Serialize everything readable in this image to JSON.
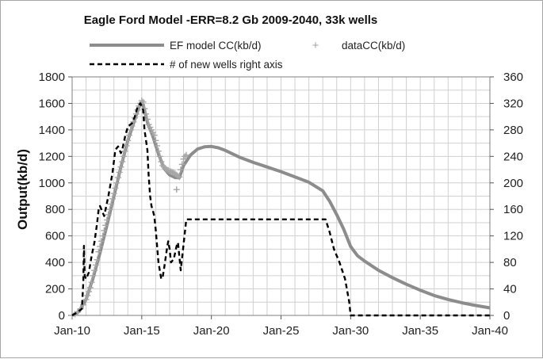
{
  "chart_data": {
    "type": "line",
    "title": "Eagle Ford Model -ERR=8.2 Gb  2009-2040, 33k wells",
    "ylabel": "Output(kb/d)",
    "xlabel": "",
    "xlim": [
      2010,
      2040
    ],
    "ylim": [
      0,
      1800
    ],
    "y2lim": [
      0,
      360
    ],
    "x_ticks": [
      2010,
      2015,
      2020,
      2025,
      2030,
      2035,
      2040
    ],
    "x_tick_labels": [
      "Jan-10",
      "Jan-15",
      "Jan-20",
      "Jan-25",
      "Jan-30",
      "Jan-35",
      "Jan-40"
    ],
    "y_ticks": [
      0,
      200,
      400,
      600,
      800,
      1000,
      1200,
      1400,
      1600,
      1800
    ],
    "y2_ticks": [
      0,
      40,
      80,
      120,
      160,
      200,
      240,
      280,
      320,
      360
    ],
    "grid": true,
    "legend_position": "top",
    "series": [
      {
        "name": "EF model CC(kb/d)",
        "axis": "left",
        "style": "line",
        "color": "#8c8c8c",
        "points": [
          [
            2010,
            0
          ],
          [
            2010.5,
            30
          ],
          [
            2011,
            120
          ],
          [
            2011.5,
            280
          ],
          [
            2012,
            470
          ],
          [
            2012.5,
            680
          ],
          [
            2013,
            900
          ],
          [
            2013.5,
            1120
          ],
          [
            2014,
            1320
          ],
          [
            2014.5,
            1480
          ],
          [
            2014.9,
            1600
          ],
          [
            2015.1,
            1590
          ],
          [
            2015.4,
            1460
          ],
          [
            2015.8,
            1350
          ],
          [
            2016.2,
            1220
          ],
          [
            2016.6,
            1110
          ],
          [
            2017,
            1060
          ],
          [
            2017.4,
            1040
          ],
          [
            2017.7,
            1040
          ],
          [
            2018,
            1130
          ],
          [
            2018.5,
            1210
          ],
          [
            2019,
            1255
          ],
          [
            2019.5,
            1272
          ],
          [
            2020,
            1275
          ],
          [
            2020.5,
            1265
          ],
          [
            2021,
            1245
          ],
          [
            2022,
            1195
          ],
          [
            2023,
            1155
          ],
          [
            2024,
            1120
          ],
          [
            2025,
            1085
          ],
          [
            2026,
            1045
          ],
          [
            2027,
            1005
          ],
          [
            2028,
            940
          ],
          [
            2028.5,
            860
          ],
          [
            2029,
            760
          ],
          [
            2029.5,
            650
          ],
          [
            2030,
            520
          ],
          [
            2030.5,
            450
          ],
          [
            2031,
            410
          ],
          [
            2032,
            340
          ],
          [
            2033,
            285
          ],
          [
            2034,
            235
          ],
          [
            2035,
            190
          ],
          [
            2036,
            150
          ],
          [
            2037,
            120
          ],
          [
            2038,
            95
          ],
          [
            2039,
            75
          ],
          [
            2040,
            57
          ]
        ]
      },
      {
        "name": "dataCC(kb/d)",
        "axis": "left",
        "style": "markers",
        "color": "#a6a6a6",
        "points": [
          [
            2010,
            0
          ],
          [
            2010.2,
            10
          ],
          [
            2010.4,
            25
          ],
          [
            2010.6,
            50
          ],
          [
            2010.8,
            80
          ],
          [
            2011,
            120
          ],
          [
            2011.1,
            150
          ],
          [
            2011.2,
            180
          ],
          [
            2011.3,
            210
          ],
          [
            2011.4,
            250
          ],
          [
            2011.5,
            300
          ],
          [
            2011.6,
            340
          ],
          [
            2011.7,
            380
          ],
          [
            2011.8,
            420
          ],
          [
            2011.9,
            480
          ],
          [
            2012,
            520
          ],
          [
            2012.1,
            560
          ],
          [
            2012.2,
            600
          ],
          [
            2012.3,
            640
          ],
          [
            2012.4,
            680
          ],
          [
            2012.5,
            720
          ],
          [
            2012.6,
            760
          ],
          [
            2012.7,
            800
          ],
          [
            2012.8,
            840
          ],
          [
            2012.9,
            880
          ],
          [
            2013,
            920
          ],
          [
            2013.1,
            960
          ],
          [
            2013.2,
            1000
          ],
          [
            2013.3,
            1040
          ],
          [
            2013.4,
            1080
          ],
          [
            2013.5,
            1120
          ],
          [
            2013.6,
            1160
          ],
          [
            2013.7,
            1200
          ],
          [
            2013.8,
            1240
          ],
          [
            2013.9,
            1280
          ],
          [
            2014,
            1320
          ],
          [
            2014.1,
            1360
          ],
          [
            2014.2,
            1400
          ],
          [
            2014.3,
            1430
          ],
          [
            2014.4,
            1460
          ],
          [
            2014.5,
            1490
          ],
          [
            2014.6,
            1520
          ],
          [
            2014.7,
            1550
          ],
          [
            2014.8,
            1580
          ],
          [
            2014.9,
            1600
          ],
          [
            2015,
            1620
          ],
          [
            2015.1,
            1610
          ],
          [
            2015.2,
            1560
          ],
          [
            2015.3,
            1520
          ],
          [
            2015.4,
            1480
          ],
          [
            2015.5,
            1440
          ],
          [
            2015.6,
            1420
          ],
          [
            2015.7,
            1400
          ],
          [
            2015.8,
            1380
          ],
          [
            2015.9,
            1360
          ],
          [
            2016,
            1320
          ],
          [
            2016.1,
            1280
          ],
          [
            2016.2,
            1240
          ],
          [
            2016.3,
            1200
          ],
          [
            2016.4,
            1160
          ],
          [
            2016.5,
            1130
          ],
          [
            2016.6,
            1120
          ],
          [
            2016.7,
            1110
          ],
          [
            2016.8,
            1100
          ],
          [
            2016.9,
            1095
          ],
          [
            2017,
            1090
          ],
          [
            2017.1,
            1085
          ],
          [
            2017.2,
            1080
          ],
          [
            2017.3,
            1075
          ],
          [
            2017.4,
            1070
          ],
          [
            2017.5,
            1060
          ],
          [
            2017.6,
            1050
          ],
          [
            2017.7,
            1045
          ],
          [
            2017.8,
            1100
          ],
          [
            2017.9,
            1140
          ],
          [
            2018,
            1180
          ],
          [
            2018.1,
            1200
          ],
          [
            2018.2,
            1210
          ],
          [
            2017.5,
            950
          ]
        ]
      },
      {
        "name": "# of new wells right axis",
        "axis": "right",
        "style": "dashed",
        "color": "#000000",
        "points": [
          [
            2010,
            0
          ],
          [
            2010.4,
            5
          ],
          [
            2010.7,
            10
          ],
          [
            2010.8,
            50
          ],
          [
            2010.85,
            105
          ],
          [
            2010.9,
            60
          ],
          [
            2011,
            55
          ],
          [
            2011.2,
            65
          ],
          [
            2011.4,
            90
          ],
          [
            2011.6,
            110
          ],
          [
            2011.8,
            140
          ],
          [
            2011.9,
            160
          ],
          [
            2012,
            165
          ],
          [
            2012.1,
            160
          ],
          [
            2012.3,
            150
          ],
          [
            2012.6,
            180
          ],
          [
            2012.9,
            215
          ],
          [
            2013.1,
            250
          ],
          [
            2013.3,
            255
          ],
          [
            2013.5,
            245
          ],
          [
            2013.6,
            250
          ],
          [
            2013.8,
            270
          ],
          [
            2014,
            285
          ],
          [
            2014.3,
            290
          ],
          [
            2014.5,
            300
          ],
          [
            2014.7,
            315
          ],
          [
            2014.9,
            320
          ],
          [
            2015.1,
            310
          ],
          [
            2015.2,
            280
          ],
          [
            2015.4,
            250
          ],
          [
            2015.5,
            210
          ],
          [
            2015.6,
            180
          ],
          [
            2015.7,
            165
          ],
          [
            2015.8,
            158
          ],
          [
            2015.9,
            150
          ],
          [
            2016,
            130
          ],
          [
            2016.2,
            80
          ],
          [
            2016.4,
            55
          ],
          [
            2016.5,
            58
          ],
          [
            2016.6,
            70
          ],
          [
            2016.8,
            100
          ],
          [
            2016.9,
            112
          ],
          [
            2017,
            100
          ],
          [
            2017.1,
            80
          ],
          [
            2017.3,
            85
          ],
          [
            2017.5,
            105
          ],
          [
            2017.6,
            110
          ],
          [
            2017.8,
            68
          ],
          [
            2018.2,
            145
          ],
          [
            2028.2,
            145
          ],
          [
            2028.5,
            125
          ],
          [
            2028.8,
            100
          ],
          [
            2029.2,
            80
          ],
          [
            2029.6,
            55
          ],
          [
            2029.9,
            20
          ],
          [
            2030,
            0
          ],
          [
            2040,
            0
          ]
        ]
      }
    ]
  }
}
